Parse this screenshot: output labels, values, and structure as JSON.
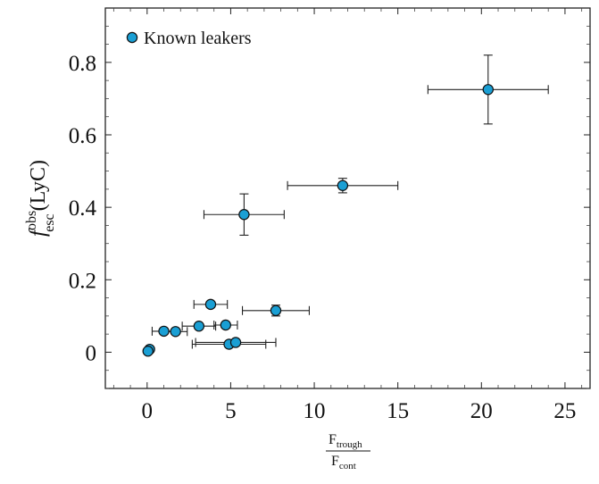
{
  "chart_data": {
    "type": "scatter",
    "xlim": [
      -2.5,
      26.5
    ],
    "ylim": [
      -0.1,
      0.95
    ],
    "xticks": [
      0,
      5,
      10,
      15,
      20,
      25
    ],
    "yticks": [
      0,
      0.2,
      0.4,
      0.6,
      0.8
    ],
    "xtick_labels": [
      "0",
      "5",
      "10",
      "15",
      "20",
      "25"
    ],
    "ytick_labels": [
      "0",
      "0.2",
      "0.4",
      "0.6",
      "0.8"
    ],
    "xlabel": {
      "numerator": "F",
      "numerator_sub": "trough",
      "denominator": "F",
      "denominator_sub": "cont"
    },
    "ylabel": {
      "symbol": "f",
      "sup": "obs",
      "sub": "esc",
      "suffix": "(LyC)"
    },
    "legend": {
      "label": "Known leakers",
      "position": "top-left"
    },
    "marker_color": "#1a9fd4",
    "grid": false,
    "series": [
      {
        "name": "Known leakers",
        "points": [
          {
            "x": 20.4,
            "y": 0.725,
            "xerr": [
              3.6,
              3.6
            ],
            "yerr": [
              0.095,
              0.095
            ]
          },
          {
            "x": 11.7,
            "y": 0.46,
            "xerr": [
              3.3,
              3.3
            ],
            "yerr": [
              0.02,
              0.02
            ]
          },
          {
            "x": 5.8,
            "y": 0.38,
            "xerr": [
              2.4,
              2.4
            ],
            "yerr": [
              0.057,
              0.057
            ]
          },
          {
            "x": 7.7,
            "y": 0.115,
            "xerr": [
              2.0,
              2.0
            ],
            "yerr": [
              0.015,
              0.015
            ]
          },
          {
            "x": 3.8,
            "y": 0.132,
            "xerr": [
              1.0,
              1.0
            ],
            "yerr": [
              0.008,
              0.008
            ]
          },
          {
            "x": 3.1,
            "y": 0.072,
            "xerr": [
              1.0,
              1.0
            ],
            "yerr": [
              0.005,
              0.005
            ]
          },
          {
            "x": 4.7,
            "y": 0.075,
            "xerr": [
              0.7,
              0.7
            ],
            "yerr": [
              0.005,
              0.005
            ]
          },
          {
            "x": 1.7,
            "y": 0.057,
            "xerr": [
              0.7,
              0.7
            ],
            "yerr": [
              0.005,
              0.005
            ]
          },
          {
            "x": 1.0,
            "y": 0.058,
            "xerr": [
              0.7,
              0.7
            ],
            "yerr": [
              0.005,
              0.005
            ]
          },
          {
            "x": 4.9,
            "y": 0.022,
            "xerr": [
              2.2,
              2.2
            ],
            "yerr": [
              0.003,
              0.003
            ]
          },
          {
            "x": 5.3,
            "y": 0.027,
            "xerr": [
              2.4,
              2.4
            ],
            "yerr": [
              0.003,
              0.003
            ]
          },
          {
            "x": 0.15,
            "y": 0.008,
            "xerr": [
              0,
              0
            ],
            "yerr": [
              0,
              0
            ]
          },
          {
            "x": 0.05,
            "y": 0.003,
            "xerr": [
              0,
              0
            ],
            "yerr": [
              0,
              0
            ]
          }
        ]
      }
    ]
  }
}
